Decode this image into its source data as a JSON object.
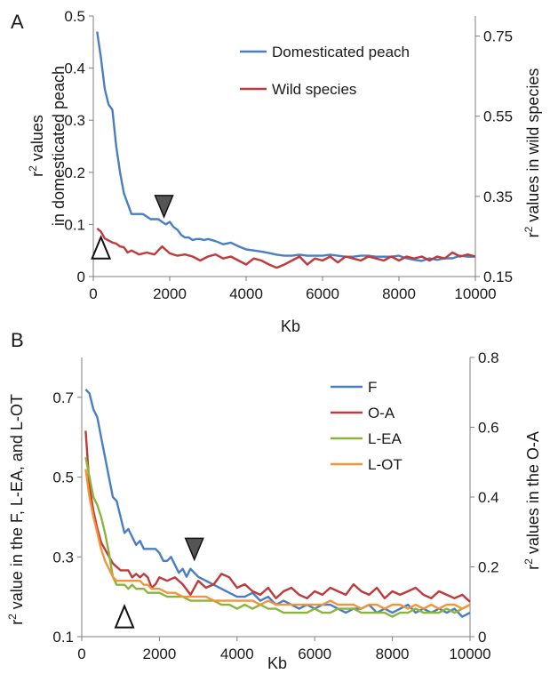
{
  "chart_data": [
    {
      "panel_label": "A",
      "type": "line",
      "xlabel": "Kb",
      "ylabel": "r² values in domesticated peach",
      "ylabel_lines": [
        "r",
        "2",
        " values",
        "in domesticated peach"
      ],
      "y2label": "r² values in wild species",
      "y2label_parts": [
        "r",
        "2",
        " values in wild species"
      ],
      "xlim": [
        0,
        10000
      ],
      "ylim": [
        0,
        0.5
      ],
      "y2lim": [
        0.15,
        0.8
      ],
      "x_ticks": [
        "0",
        "2000",
        "4000",
        "6000",
        "8000",
        "10000"
      ],
      "y_ticks": [
        "0",
        "0.1",
        "0.2",
        "0.3",
        "0.4",
        "0.5"
      ],
      "y2_ticks": [
        "0.15",
        "0.35",
        "0.55",
        "0.75"
      ],
      "grid": false,
      "legend_position": "top-right",
      "series": [
        {
          "name": "Domesticated peach",
          "axis": "left",
          "color": "#4a7ec2",
          "x": [
            100,
            200,
            300,
            400,
            500,
            600,
            700,
            800,
            900,
            1000,
            1100,
            1200,
            1300,
            1400,
            1500,
            1600,
            1700,
            1800,
            1900,
            2000,
            2100,
            2200,
            2300,
            2400,
            2500,
            2600,
            2700,
            2800,
            2900,
            3000,
            3200,
            3400,
            3600,
            3800,
            4000,
            4200,
            4400,
            4600,
            4800,
            5000,
            5200,
            5400,
            5600,
            5800,
            6000,
            6200,
            6400,
            6600,
            6800,
            7000,
            7200,
            7400,
            7600,
            7800,
            8000,
            8200,
            8400,
            8600,
            8800,
            9000,
            9200,
            9400,
            9600,
            9800,
            10000
          ],
          "y": [
            0.47,
            0.42,
            0.36,
            0.33,
            0.32,
            0.25,
            0.2,
            0.16,
            0.14,
            0.12,
            0.12,
            0.12,
            0.12,
            0.115,
            0.11,
            0.11,
            0.11,
            0.105,
            0.1,
            0.105,
            0.095,
            0.09,
            0.08,
            0.075,
            0.075,
            0.07,
            0.072,
            0.072,
            0.07,
            0.072,
            0.068,
            0.062,
            0.065,
            0.058,
            0.052,
            0.05,
            0.048,
            0.045,
            0.042,
            0.04,
            0.04,
            0.042,
            0.04,
            0.04,
            0.04,
            0.042,
            0.04,
            0.038,
            0.038,
            0.04,
            0.04,
            0.038,
            0.038,
            0.038,
            0.04,
            0.035,
            0.032,
            0.03,
            0.035,
            0.032,
            0.035,
            0.035,
            0.04,
            0.038,
            0.038
          ]
        },
        {
          "name": "Wild species",
          "axis": "right",
          "color": "#c0393b",
          "x": [
            100,
            200,
            300,
            400,
            500,
            600,
            700,
            800,
            900,
            1000,
            1200,
            1400,
            1600,
            1800,
            2000,
            2200,
            2400,
            2600,
            2800,
            3000,
            3200,
            3400,
            3600,
            3800,
            4000,
            4200,
            4400,
            4600,
            4800,
            5000,
            5200,
            5400,
            5600,
            5800,
            6000,
            6200,
            6400,
            6600,
            6800,
            7000,
            7200,
            7400,
            7600,
            7800,
            8000,
            8200,
            8400,
            8600,
            8800,
            9000,
            9200,
            9400,
            9600,
            9800,
            10000
          ],
          "y": [
            0.27,
            0.262,
            0.245,
            0.24,
            0.235,
            0.232,
            0.225,
            0.223,
            0.21,
            0.215,
            0.205,
            0.21,
            0.205,
            0.225,
            0.208,
            0.202,
            0.205,
            0.2,
            0.19,
            0.2,
            0.205,
            0.195,
            0.2,
            0.19,
            0.18,
            0.195,
            0.19,
            0.18,
            0.172,
            0.18,
            0.19,
            0.2,
            0.18,
            0.195,
            0.19,
            0.2,
            0.185,
            0.2,
            0.195,
            0.19,
            0.2,
            0.195,
            0.19,
            0.2,
            0.19,
            0.2,
            0.195,
            0.2,
            0.19,
            0.2,
            0.195,
            0.21,
            0.2,
            0.205,
            0.2
          ]
        }
      ],
      "markers": [
        {
          "kind": "filled-triangle",
          "series": "Domesticated peach",
          "x": 1850,
          "y": 0.135
        },
        {
          "kind": "open-triangle",
          "series": "Wild species",
          "x": 200,
          "y": 0.055
        }
      ]
    },
    {
      "panel_label": "B",
      "type": "line",
      "xlabel": "Kb",
      "ylabel": "r² value in the F, L-EA, and L-OT",
      "ylabel_parts": [
        "r",
        "2",
        " value in the F, L-EA, and L-OT"
      ],
      "y2label": "r² values in the O-A",
      "y2label_parts": [
        "r",
        "2",
        " values in the O-A"
      ],
      "xlim": [
        0,
        10000
      ],
      "ylim": [
        0.1,
        0.8
      ],
      "y2lim": [
        0,
        0.8
      ],
      "x_ticks": [
        "0",
        "2000",
        "4000",
        "6000",
        "8000",
        "10000"
      ],
      "y_ticks": [
        "0.1",
        "0.3",
        "0.5",
        "0.7"
      ],
      "y2_ticks": [
        "0",
        "0.2",
        "0.4",
        "0.6",
        "0.8"
      ],
      "grid": false,
      "legend_position": "top-right",
      "series": [
        {
          "name": "F",
          "axis": "left",
          "color": "#4a7ec2",
          "x": [
            100,
            200,
            300,
            400,
            500,
            600,
            700,
            800,
            900,
            1000,
            1100,
            1200,
            1300,
            1400,
            1500,
            1600,
            1700,
            1800,
            1900,
            2000,
            2100,
            2200,
            2300,
            2400,
            2500,
            2600,
            2700,
            2800,
            2900,
            3000,
            3200,
            3400,
            3600,
            3800,
            4000,
            4200,
            4400,
            4600,
            4800,
            5000,
            5200,
            5400,
            5600,
            5800,
            6000,
            6200,
            6400,
            6600,
            6800,
            7000,
            7200,
            7400,
            7600,
            7800,
            8000,
            8200,
            8400,
            8600,
            8800,
            9000,
            9200,
            9400,
            9600,
            9800,
            10000
          ],
          "y": [
            0.72,
            0.71,
            0.67,
            0.65,
            0.6,
            0.55,
            0.5,
            0.45,
            0.44,
            0.4,
            0.36,
            0.37,
            0.35,
            0.33,
            0.34,
            0.32,
            0.32,
            0.32,
            0.32,
            0.31,
            0.29,
            0.29,
            0.3,
            0.28,
            0.26,
            0.27,
            0.25,
            0.27,
            0.26,
            0.25,
            0.24,
            0.23,
            0.22,
            0.21,
            0.2,
            0.2,
            0.21,
            0.19,
            0.2,
            0.18,
            0.19,
            0.18,
            0.17,
            0.18,
            0.17,
            0.18,
            0.18,
            0.17,
            0.16,
            0.17,
            0.17,
            0.18,
            0.16,
            0.17,
            0.16,
            0.17,
            0.18,
            0.16,
            0.17,
            0.16,
            0.17,
            0.16,
            0.17,
            0.15,
            0.16
          ]
        },
        {
          "name": "O-A",
          "axis": "right",
          "color": "#c0393b",
          "x": [
            100,
            200,
            300,
            400,
            500,
            600,
            700,
            800,
            900,
            1000,
            1100,
            1200,
            1300,
            1400,
            1500,
            1600,
            1700,
            1800,
            1900,
            2000,
            2200,
            2400,
            2600,
            2800,
            3000,
            3200,
            3400,
            3600,
            3800,
            4000,
            4200,
            4400,
            4600,
            4800,
            5000,
            5200,
            5400,
            5600,
            5800,
            6000,
            6200,
            6400,
            6600,
            6800,
            7000,
            7200,
            7400,
            7600,
            7800,
            8000,
            8200,
            8400,
            8600,
            8800,
            9000,
            9200,
            9400,
            9600,
            9800,
            10000
          ],
          "y": [
            0.59,
            0.43,
            0.36,
            0.31,
            0.27,
            0.25,
            0.23,
            0.21,
            0.2,
            0.19,
            0.19,
            0.19,
            0.17,
            0.18,
            0.17,
            0.18,
            0.17,
            0.14,
            0.15,
            0.17,
            0.16,
            0.17,
            0.15,
            0.12,
            0.16,
            0.14,
            0.15,
            0.18,
            0.17,
            0.14,
            0.15,
            0.13,
            0.12,
            0.14,
            0.11,
            0.13,
            0.14,
            0.12,
            0.11,
            0.13,
            0.12,
            0.14,
            0.13,
            0.12,
            0.15,
            0.13,
            0.12,
            0.14,
            0.11,
            0.13,
            0.12,
            0.13,
            0.14,
            0.12,
            0.11,
            0.13,
            0.12,
            0.11,
            0.12,
            0.1
          ]
        },
        {
          "name": "L-EA",
          "axis": "left",
          "color": "#8ab53c",
          "x": [
            100,
            200,
            300,
            400,
            500,
            600,
            700,
            800,
            900,
            1000,
            1100,
            1200,
            1300,
            1400,
            1500,
            1600,
            1700,
            1800,
            1900,
            2000,
            2200,
            2400,
            2600,
            2800,
            3000,
            3200,
            3400,
            3600,
            3800,
            4000,
            4200,
            4400,
            4600,
            4800,
            5000,
            5200,
            5400,
            5600,
            5800,
            6000,
            6200,
            6400,
            6600,
            6800,
            7000,
            7200,
            7400,
            7600,
            7800,
            8000,
            8200,
            8400,
            8600,
            8800,
            9000,
            9200,
            9400,
            9600,
            9800,
            10000
          ],
          "y": [
            0.55,
            0.5,
            0.45,
            0.43,
            0.4,
            0.36,
            0.31,
            0.25,
            0.23,
            0.23,
            0.23,
            0.22,
            0.23,
            0.22,
            0.22,
            0.22,
            0.21,
            0.21,
            0.21,
            0.21,
            0.2,
            0.2,
            0.2,
            0.19,
            0.19,
            0.19,
            0.19,
            0.18,
            0.18,
            0.17,
            0.18,
            0.17,
            0.18,
            0.17,
            0.17,
            0.16,
            0.16,
            0.16,
            0.16,
            0.17,
            0.16,
            0.16,
            0.17,
            0.17,
            0.17,
            0.16,
            0.16,
            0.16,
            0.16,
            0.15,
            0.16,
            0.16,
            0.17,
            0.16,
            0.16,
            0.16,
            0.17,
            0.16,
            0.17,
            0.18
          ]
        },
        {
          "name": "L-OT",
          "axis": "left",
          "color": "#f2953a",
          "x": [
            100,
            200,
            300,
            400,
            500,
            600,
            700,
            800,
            900,
            1000,
            1100,
            1200,
            1300,
            1400,
            1500,
            1600,
            1700,
            1800,
            1900,
            2000,
            2200,
            2400,
            2600,
            2800,
            3000,
            3200,
            3400,
            3600,
            3800,
            4000,
            4200,
            4400,
            4600,
            4800,
            5000,
            5200,
            5400,
            5600,
            5800,
            6000,
            6200,
            6400,
            6600,
            6800,
            7000,
            7200,
            7400,
            7600,
            7800,
            8000,
            8200,
            8400,
            8600,
            8800,
            9000,
            9200,
            9400,
            9600,
            9800,
            10000
          ],
          "y": [
            0.52,
            0.45,
            0.4,
            0.36,
            0.32,
            0.29,
            0.27,
            0.25,
            0.24,
            0.24,
            0.24,
            0.24,
            0.24,
            0.24,
            0.24,
            0.23,
            0.23,
            0.22,
            0.22,
            0.22,
            0.21,
            0.21,
            0.2,
            0.2,
            0.2,
            0.2,
            0.19,
            0.19,
            0.19,
            0.19,
            0.19,
            0.19,
            0.18,
            0.19,
            0.18,
            0.18,
            0.18,
            0.18,
            0.18,
            0.18,
            0.18,
            0.19,
            0.18,
            0.18,
            0.18,
            0.17,
            0.18,
            0.18,
            0.17,
            0.18,
            0.18,
            0.17,
            0.18,
            0.17,
            0.18,
            0.17,
            0.18,
            0.18,
            0.17,
            0.18
          ]
        }
      ],
      "markers": [
        {
          "kind": "filled-triangle",
          "series": "F",
          "x": 2900,
          "y": 0.32
        },
        {
          "kind": "open-triangle",
          "series": "L-EA",
          "x": 1100,
          "y": 0.15
        }
      ]
    }
  ]
}
